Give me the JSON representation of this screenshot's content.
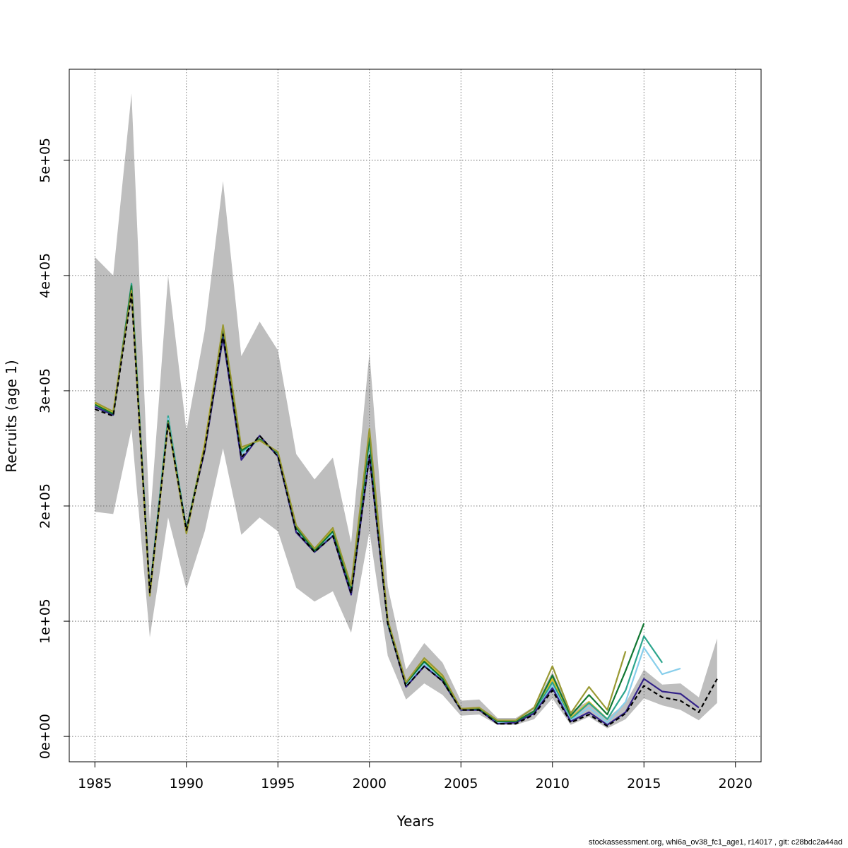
{
  "chart_data": {
    "type": "line",
    "xlabel": "Years",
    "ylabel": "Recruits (age 1)",
    "xlim": [
      1983.6,
      2021.4
    ],
    "ylim": [
      -22000,
      579000
    ],
    "x_ticks": [
      1985,
      1990,
      1995,
      2000,
      2005,
      2010,
      2015,
      2020
    ],
    "x_tick_labels": [
      "1985",
      "1990",
      "1995",
      "2000",
      "2005",
      "2010",
      "2015",
      "2020"
    ],
    "y_ticks": [
      0,
      100000,
      200000,
      300000,
      400000,
      500000
    ],
    "y_tick_labels": [
      "0e+00",
      "1e+05",
      "2e+05",
      "3e+05",
      "4e+05",
      "5e+05"
    ],
    "grid": true,
    "band": {
      "color": "#bebebe",
      "x": [
        1985,
        1986,
        1987,
        1988,
        1989,
        1990,
        1991,
        1992,
        1993,
        1994,
        1995,
        1996,
        1997,
        1998,
        1999,
        2000,
        2001,
        2002,
        2003,
        2004,
        2005,
        2006,
        2007,
        2008,
        2009,
        2010,
        2011,
        2012,
        2013,
        2014,
        2015,
        2016,
        2017,
        2018,
        2019
      ],
      "lower": [
        195000,
        193000,
        267000,
        86000,
        190000,
        128000,
        178000,
        250000,
        175000,
        190000,
        178000,
        129000,
        117000,
        126000,
        90000,
        178000,
        70000,
        32000,
        46000,
        36000,
        18000,
        19000,
        10000,
        10000,
        15000,
        33000,
        10000,
        17000,
        7000,
        15000,
        33000,
        27000,
        23000,
        14000,
        29000
      ],
      "upper": [
        416000,
        400000,
        558000,
        185000,
        400000,
        265000,
        352000,
        482000,
        330000,
        360000,
        335000,
        245000,
        223000,
        242000,
        168000,
        333000,
        130000,
        58000,
        81000,
        64000,
        31000,
        32000,
        16000,
        16000,
        26000,
        56000,
        22000,
        31000,
        16000,
        29000,
        58000,
        45000,
        46000,
        34000,
        85000
      ]
    },
    "series": [
      {
        "color": "#e0c020",
        "x": [
          1985,
          1986,
          1987,
          1988,
          1989,
          1990,
          1991,
          1992,
          1993,
          1994,
          1995,
          1996,
          1997,
          1998,
          1999,
          2000,
          2001,
          2002,
          2003,
          2004,
          2005,
          2006,
          2007,
          2008,
          2009,
          2010,
          2011,
          2012,
          2013
        ],
        "y": [
          289000,
          281000,
          388000,
          125000,
          273000,
          178000,
          254000,
          356000,
          249000,
          257000,
          246000,
          182000,
          162000,
          180000,
          130000,
          263000,
          100000,
          46000,
          66000,
          51000,
          24000,
          25000,
          13000,
          13000,
          22000,
          50000,
          16000,
          30000,
          15000
        ]
      },
      {
        "color": "#2ca58d",
        "x": [
          1985,
          1986,
          1987,
          1988,
          1989,
          1990,
          1991,
          1992,
          1993,
          1994,
          1995,
          1996,
          1997,
          1998,
          1999,
          2000,
          2001,
          2002,
          2003,
          2004,
          2005,
          2006,
          2007,
          2008,
          2009,
          2010,
          2011,
          2012,
          2013,
          2014,
          2015,
          2016
        ],
        "y": [
          286000,
          279000,
          393000,
          126000,
          278000,
          180000,
          250000,
          350000,
          246000,
          258000,
          245000,
          180000,
          161000,
          176000,
          127000,
          256000,
          98000,
          45000,
          64000,
          50000,
          23000,
          24000,
          12000,
          12000,
          21000,
          47000,
          15000,
          29000,
          15000,
          40000,
          87000,
          64000
        ]
      },
      {
        "color": "#87ceeb",
        "x": [
          1985,
          1986,
          1987,
          1988,
          1989,
          1990,
          1991,
          1992,
          1993,
          1994,
          1995,
          1996,
          1997,
          1998,
          1999,
          2000,
          2001,
          2002,
          2003,
          2004,
          2005,
          2006,
          2007,
          2008,
          2009,
          2010,
          2011,
          2012,
          2013,
          2014,
          2015,
          2016,
          2017
        ],
        "y": [
          286000,
          279000,
          388000,
          125000,
          276000,
          180000,
          250000,
          350000,
          245000,
          258000,
          245000,
          180000,
          161000,
          176000,
          126000,
          255000,
          97000,
          45000,
          63000,
          49000,
          23000,
          24000,
          12000,
          12000,
          20000,
          44000,
          14000,
          25000,
          12000,
          30000,
          77000,
          54000,
          59000
        ]
      },
      {
        "color": "#332288",
        "x": [
          1985,
          1986,
          1987,
          1988,
          1989,
          1990,
          1991,
          1992,
          1993,
          1994,
          1995,
          1996,
          1997,
          1998,
          1999,
          2000,
          2001,
          2002,
          2003,
          2004,
          2005,
          2006,
          2007,
          2008,
          2009,
          2010,
          2011,
          2012,
          2013,
          2014,
          2015,
          2016,
          2017,
          2018
        ],
        "y": [
          286000,
          279000,
          388000,
          125000,
          272000,
          180000,
          248000,
          346000,
          240000,
          261000,
          243000,
          177000,
          160000,
          174000,
          123000,
          243000,
          98000,
          43000,
          61000,
          48000,
          23000,
          23000,
          11000,
          12000,
          20000,
          42000,
          13000,
          21000,
          10000,
          21000,
          50000,
          39000,
          37000,
          25000
        ]
      },
      {
        "color": "#117733",
        "x": [
          1985,
          1986,
          1987,
          1988,
          1989,
          1990,
          1991,
          1992,
          1993,
          1994,
          1995,
          1996,
          1997,
          1998,
          1999,
          2000,
          2001,
          2002,
          2003,
          2004,
          2005,
          2006,
          2007,
          2008,
          2009,
          2010,
          2011,
          2012,
          2013,
          2014,
          2015
        ],
        "y": [
          288000,
          280000,
          391000,
          124000,
          274000,
          179000,
          252000,
          354000,
          248000,
          258000,
          246000,
          181000,
          161000,
          178000,
          128000,
          259000,
          99000,
          46000,
          65000,
          50000,
          24000,
          24000,
          13000,
          13000,
          22000,
          53000,
          18000,
          36000,
          19000,
          57000,
          98000
        ]
      },
      {
        "color": "#999933",
        "x": [
          1985,
          1986,
          1987,
          1988,
          1989,
          1990,
          1991,
          1992,
          1993,
          1994,
          1995,
          1996,
          1997,
          1998,
          1999,
          2000,
          2001,
          2002,
          2003,
          2004,
          2005,
          2006,
          2007,
          2008,
          2009,
          2010,
          2011,
          2012,
          2013,
          2014
        ],
        "y": [
          290000,
          282000,
          387000,
          122000,
          272000,
          176000,
          252000,
          357000,
          251000,
          257000,
          247000,
          183000,
          163000,
          181000,
          131000,
          267000,
          101000,
          47000,
          68000,
          53000,
          24000,
          25000,
          14000,
          14000,
          25000,
          61000,
          20000,
          43000,
          23000,
          74000
        ]
      },
      {
        "color": "#000000",
        "dashed": true,
        "x": [
          1985,
          1986,
          1987,
          1988,
          1989,
          1990,
          1991,
          1992,
          1993,
          1994,
          1995,
          1996,
          1997,
          1998,
          1999,
          2000,
          2001,
          2002,
          2003,
          2004,
          2005,
          2006,
          2007,
          2008,
          2009,
          2010,
          2011,
          2012,
          2013,
          2014,
          2015,
          2016,
          2017,
          2018,
          2019
        ],
        "y": [
          284000,
          278000,
          384000,
          125000,
          272000,
          179000,
          249000,
          349000,
          242000,
          261000,
          243000,
          178000,
          160000,
          174000,
          124000,
          244000,
          98000,
          43000,
          61000,
          48000,
          23000,
          23000,
          11000,
          11000,
          19000,
          40000,
          12000,
          19000,
          9000,
          20000,
          44000,
          34000,
          31000,
          21000,
          50000
        ]
      }
    ]
  },
  "footer": "stockassessment.org, whi6a_ov38_fc1_age1, r14017 , git: c28bdc2a44ad"
}
